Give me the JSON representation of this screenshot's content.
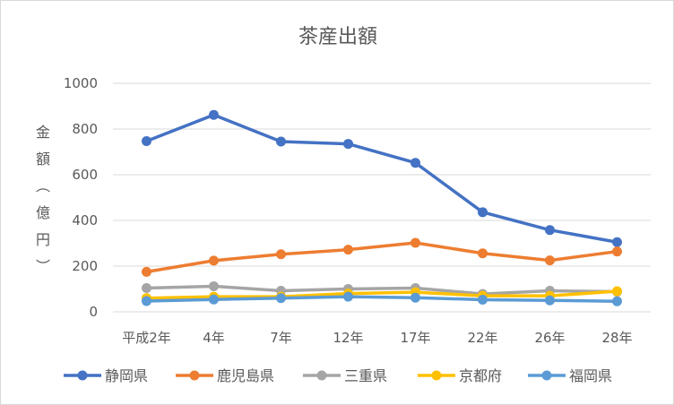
{
  "chart_data": {
    "type": "line",
    "title": "茶産出額",
    "ylabel_chars": [
      "金",
      "額",
      "︵",
      "億",
      "円",
      "︶"
    ],
    "categories": [
      "平成2年",
      "4年",
      "7年",
      "12年",
      "17年",
      "22年",
      "26年",
      "28年"
    ],
    "ylim": [
      0,
      1000
    ],
    "yticks": [
      "0",
      "200",
      "400",
      "600",
      "800",
      "1000"
    ],
    "grid": true,
    "legend_position": "bottom",
    "series": [
      {
        "name": "静岡県",
        "color": "#4472c4",
        "values": [
          747,
          862,
          745,
          735,
          652,
          436,
          358,
          305
        ]
      },
      {
        "name": "鹿児島県",
        "color": "#ed7d31",
        "values": [
          175,
          224,
          252,
          272,
          302,
          256,
          225,
          264
        ]
      },
      {
        "name": "三重県",
        "color": "#a5a5a5",
        "values": [
          104,
          112,
          92,
          100,
          104,
          78,
          92,
          88
        ]
      },
      {
        "name": "京都府",
        "color": "#ffc000",
        "values": [
          60,
          66,
          66,
          80,
          86,
          70,
          70,
          90
        ]
      },
      {
        "name": "福岡県",
        "color": "#5b9bd5",
        "values": [
          47,
          54,
          60,
          66,
          62,
          53,
          50,
          46
        ]
      }
    ]
  }
}
